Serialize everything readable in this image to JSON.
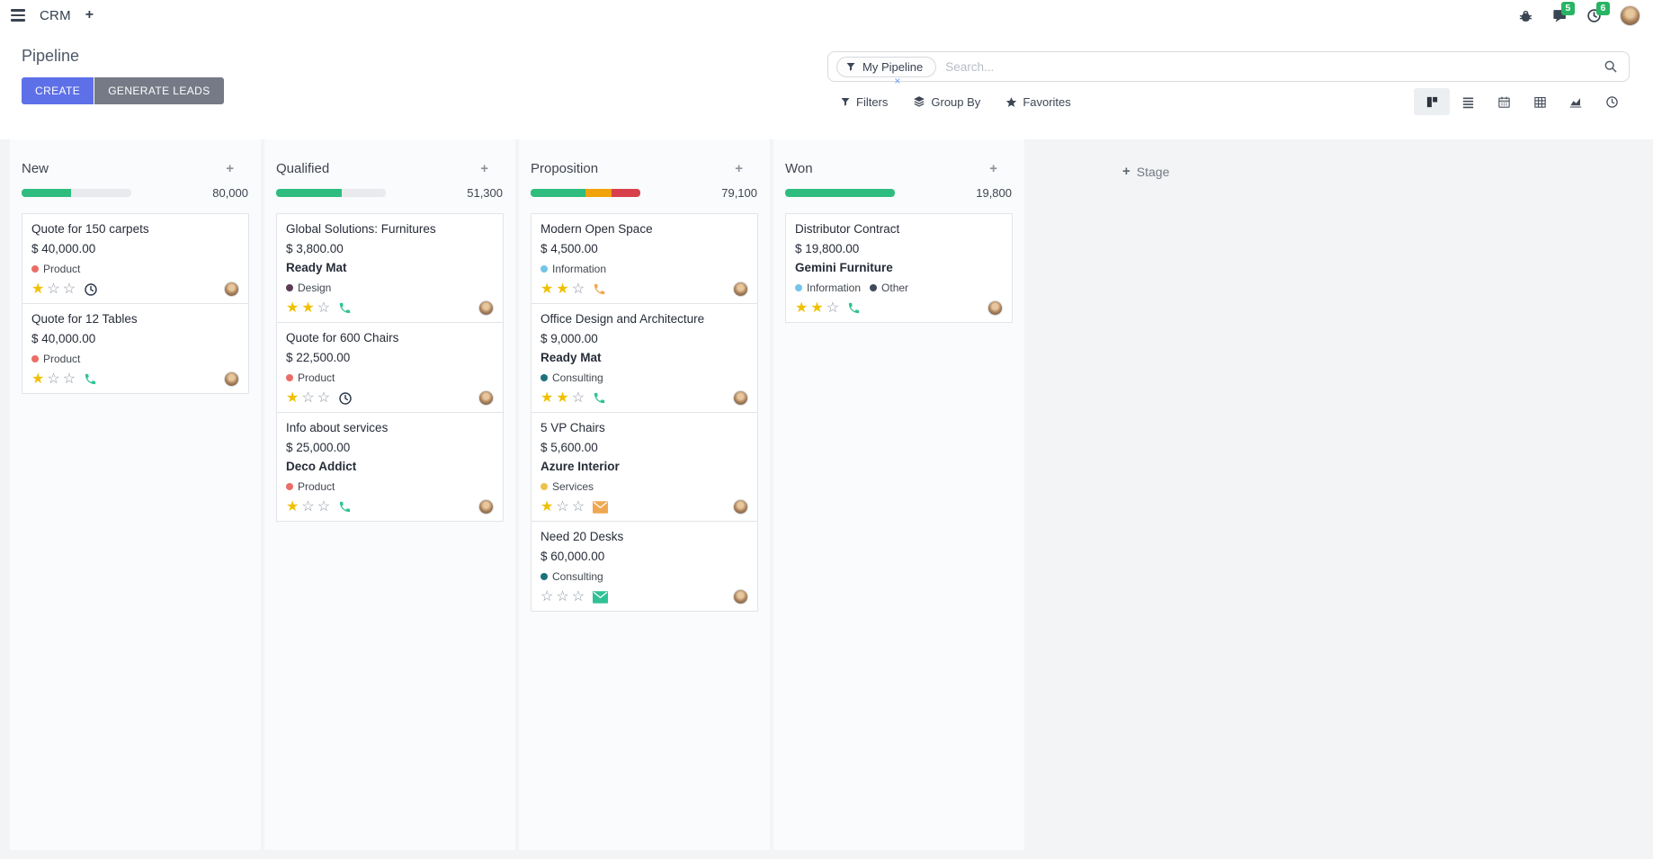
{
  "navbar": {
    "app_label": "CRM",
    "plus_label": "+",
    "message_count": "5",
    "activity_count": "6"
  },
  "control": {
    "title": "Pipeline",
    "create_label": "CREATE",
    "generate_label": "GENERATE LEADS",
    "facet_label": "My Pipeline",
    "facet_remove": "×",
    "search_placeholder": "Search...",
    "filters_label": "Filters",
    "group_by_label": "Group By",
    "favorites_label": "Favorites"
  },
  "stage": {
    "add_label": "Stage"
  },
  "colors": {
    "progress_green": "#2ebd7e",
    "progress_orange": "#f0a30b",
    "progress_red": "#d8414c",
    "badge_green": "#28b463",
    "primary_button": "#5d70e8"
  },
  "columns": [
    {
      "name": "New",
      "amount": "80,000",
      "bar": [
        {
          "color": "#2ebd7e",
          "pct": 45
        }
      ],
      "cards": [
        {
          "title": "Quote for 150 carpets",
          "amount": "$ 40,000.00",
          "partner": "",
          "tags": [
            {
              "label": "Product",
              "color": "#ea6d66"
            }
          ],
          "stars": 1,
          "icon": "clock"
        },
        {
          "title": "Quote for 12 Tables",
          "amount": "$ 40,000.00",
          "partner": "",
          "tags": [
            {
              "label": "Product",
              "color": "#ea6d66"
            }
          ],
          "stars": 1,
          "icon": "phone-green"
        }
      ]
    },
    {
      "name": "Qualified",
      "amount": "51,300",
      "bar": [
        {
          "color": "#2ebd7e",
          "pct": 60
        }
      ],
      "cards": [
        {
          "title": "Global Solutions: Furnitures",
          "amount": "$ 3,800.00",
          "partner": "Ready Mat",
          "tags": [
            {
              "label": "Design",
              "color": "#5d3b57"
            }
          ],
          "stars": 2,
          "icon": "phone-green"
        },
        {
          "title": "Quote for 600 Chairs",
          "amount": "$ 22,500.00",
          "partner": "",
          "tags": [
            {
              "label": "Product",
              "color": "#ea6d66"
            }
          ],
          "stars": 1,
          "icon": "clock"
        },
        {
          "title": "Info about services",
          "amount": "$ 25,000.00",
          "partner": "Deco Addict",
          "tags": [
            {
              "label": "Product",
              "color": "#ea6d66"
            }
          ],
          "stars": 1,
          "icon": "phone-green"
        }
      ]
    },
    {
      "name": "Proposition",
      "amount": "79,100",
      "bar": [
        {
          "color": "#2ebd7e",
          "pct": 50
        },
        {
          "color": "#f0a30b",
          "pct": 24
        },
        {
          "color": "#d8414c",
          "pct": 26
        }
      ],
      "cards": [
        {
          "title": "Modern Open Space",
          "amount": "$ 4,500.00",
          "partner": "",
          "tags": [
            {
              "label": "Information",
              "color": "#73c5ea"
            }
          ],
          "stars": 2,
          "icon": "phone-orange"
        },
        {
          "title": "Office Design and Architecture",
          "amount": "$ 9,000.00",
          "partner": "Ready Mat",
          "tags": [
            {
              "label": "Consulting",
              "color": "#1d717c"
            }
          ],
          "stars": 2,
          "icon": "phone-green"
        },
        {
          "title": "5 VP Chairs",
          "amount": "$ 5,600.00",
          "partner": "Azure Interior",
          "tags": [
            {
              "label": "Services",
              "color": "#ecc24a"
            }
          ],
          "stars": 1,
          "icon": "envelope-orange"
        },
        {
          "title": "Need 20 Desks",
          "amount": "$ 60,000.00",
          "partner": "",
          "tags": [
            {
              "label": "Consulting",
              "color": "#1d717c"
            }
          ],
          "stars": 0,
          "icon": "envelope-green"
        }
      ]
    },
    {
      "name": "Won",
      "amount": "19,800",
      "bar": [
        {
          "color": "#2ebd7e",
          "pct": 100
        }
      ],
      "cards": [
        {
          "title": "Distributor Contract",
          "amount": "$ 19,800.00",
          "partner": "Gemini Furniture",
          "tags": [
            {
              "label": "Information",
              "color": "#73c5ea"
            },
            {
              "label": "Other",
              "color": "#3e4a5c"
            }
          ],
          "stars": 2,
          "icon": "phone-green"
        }
      ]
    }
  ]
}
